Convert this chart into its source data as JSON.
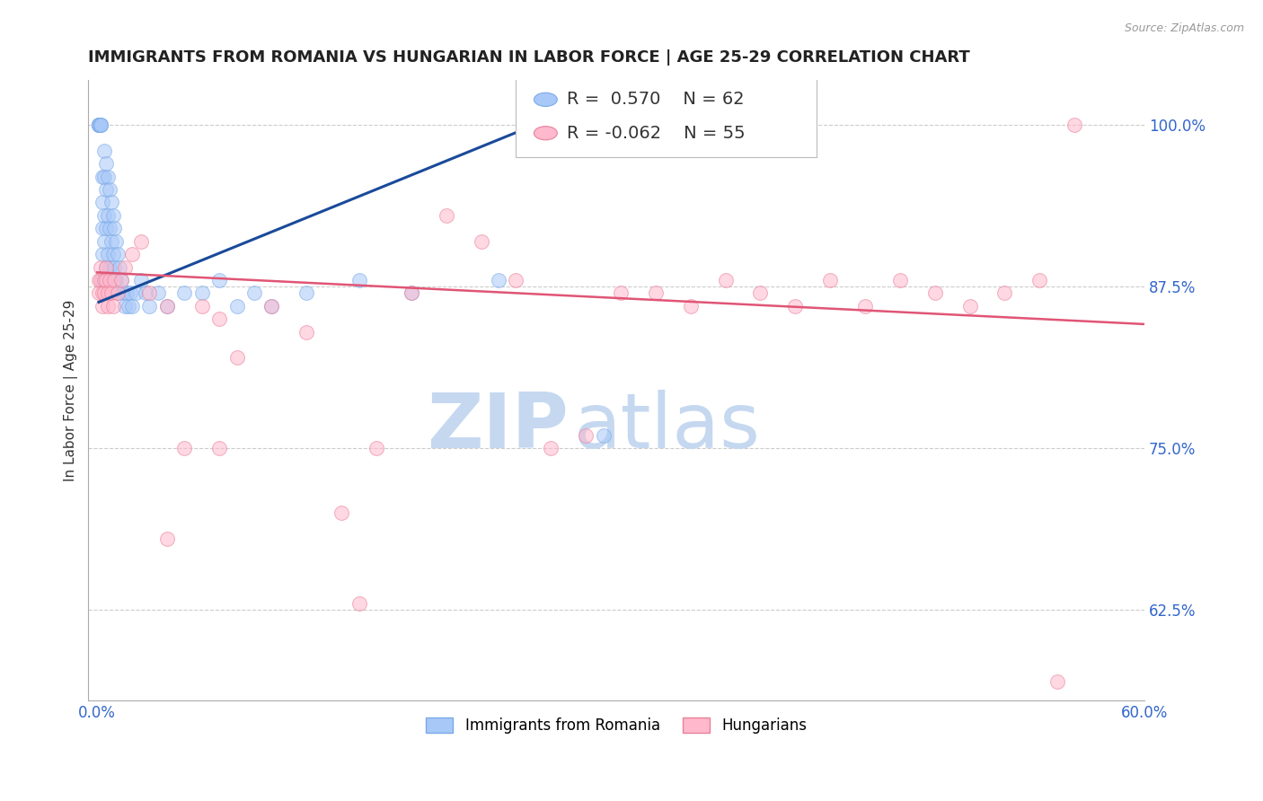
{
  "title": "IMMIGRANTS FROM ROMANIA VS HUNGARIAN IN LABOR FORCE | AGE 25-29 CORRELATION CHART",
  "source": "Source: ZipAtlas.com",
  "ylabel": "In Labor Force | Age 25-29",
  "xlim": [
    -0.005,
    0.6
  ],
  "ylim": [
    0.555,
    1.035
  ],
  "xticks": [
    0.0,
    0.1,
    0.2,
    0.3,
    0.4,
    0.5,
    0.6
  ],
  "xticklabels": [
    "0.0%",
    "",
    "",
    "",
    "",
    "",
    "60.0%"
  ],
  "ytick_positions": [
    0.625,
    0.75,
    0.875,
    1.0
  ],
  "yticklabels": [
    "62.5%",
    "75.0%",
    "87.5%",
    "100.0%"
  ],
  "legend_entries": [
    {
      "label": "Immigrants from Romania",
      "color": "#A8C8F8",
      "edge": "#7AAAE8",
      "R": "0.570",
      "N": "62"
    },
    {
      "label": "Hungarians",
      "color": "#FFB8CC",
      "edge": "#E8809A",
      "R": "-0.062",
      "N": "55"
    }
  ],
  "blue_scatter_x": [
    0.001,
    0.001,
    0.001,
    0.001,
    0.001,
    0.002,
    0.002,
    0.002,
    0.003,
    0.003,
    0.003,
    0.003,
    0.003,
    0.004,
    0.004,
    0.004,
    0.004,
    0.005,
    0.005,
    0.005,
    0.005,
    0.006,
    0.006,
    0.006,
    0.007,
    0.007,
    0.007,
    0.008,
    0.008,
    0.009,
    0.009,
    0.01,
    0.01,
    0.011,
    0.011,
    0.012,
    0.012,
    0.013,
    0.014,
    0.015,
    0.016,
    0.017,
    0.018,
    0.019,
    0.02,
    0.022,
    0.025,
    0.028,
    0.03,
    0.035,
    0.04,
    0.05,
    0.06,
    0.07,
    0.08,
    0.09,
    0.1,
    0.12,
    0.15,
    0.18,
    0.23,
    0.29
  ],
  "blue_scatter_y": [
    1.0,
    1.0,
    1.0,
    1.0,
    1.0,
    1.0,
    1.0,
    1.0,
    0.96,
    0.94,
    0.92,
    0.9,
    0.88,
    0.98,
    0.96,
    0.93,
    0.91,
    0.97,
    0.95,
    0.92,
    0.89,
    0.96,
    0.93,
    0.9,
    0.95,
    0.92,
    0.89,
    0.94,
    0.91,
    0.93,
    0.9,
    0.92,
    0.89,
    0.91,
    0.88,
    0.9,
    0.87,
    0.89,
    0.88,
    0.87,
    0.86,
    0.87,
    0.86,
    0.87,
    0.86,
    0.87,
    0.88,
    0.87,
    0.86,
    0.87,
    0.86,
    0.87,
    0.87,
    0.88,
    0.86,
    0.87,
    0.86,
    0.87,
    0.88,
    0.87,
    0.88,
    0.76
  ],
  "pink_scatter_x": [
    0.001,
    0.001,
    0.002,
    0.002,
    0.003,
    0.003,
    0.004,
    0.004,
    0.005,
    0.005,
    0.006,
    0.006,
    0.007,
    0.008,
    0.009,
    0.01,
    0.012,
    0.014,
    0.016,
    0.02,
    0.025,
    0.03,
    0.04,
    0.05,
    0.06,
    0.07,
    0.08,
    0.1,
    0.12,
    0.14,
    0.16,
    0.18,
    0.2,
    0.22,
    0.24,
    0.26,
    0.28,
    0.3,
    0.32,
    0.34,
    0.36,
    0.38,
    0.4,
    0.42,
    0.44,
    0.46,
    0.48,
    0.5,
    0.52,
    0.54,
    0.56,
    0.04,
    0.07,
    0.15,
    0.55
  ],
  "pink_scatter_y": [
    0.88,
    0.87,
    0.89,
    0.88,
    0.87,
    0.86,
    0.88,
    0.87,
    0.89,
    0.88,
    0.87,
    0.86,
    0.88,
    0.87,
    0.86,
    0.88,
    0.87,
    0.88,
    0.89,
    0.9,
    0.91,
    0.87,
    0.86,
    0.75,
    0.86,
    0.85,
    0.82,
    0.86,
    0.84,
    0.7,
    0.75,
    0.87,
    0.93,
    0.91,
    0.88,
    0.75,
    0.76,
    0.87,
    0.87,
    0.86,
    0.88,
    0.87,
    0.86,
    0.88,
    0.86,
    0.88,
    0.87,
    0.86,
    0.87,
    0.88,
    1.0,
    0.68,
    0.75,
    0.63,
    0.57
  ],
  "blue_line_x": [
    0.001,
    0.26
  ],
  "blue_line_y": [
    0.863,
    1.005
  ],
  "pink_line_x": [
    0.0,
    0.6
  ],
  "pink_line_y": [
    0.886,
    0.846
  ],
  "watermark_zip": "ZIP",
  "watermark_atlas": "atlas",
  "watermark_color_zip": "#C5D8F0",
  "watermark_color_atlas": "#C5D8F0",
  "scatter_size": 130,
  "scatter_alpha": 0.55,
  "blue_line_color": "#1A4A9A",
  "pink_line_color": "#E05575",
  "grid_color": "#CCCCCC",
  "title_fontsize": 13,
  "axis_label_fontsize": 11,
  "tick_fontsize": 12,
  "legend_fontsize": 14
}
